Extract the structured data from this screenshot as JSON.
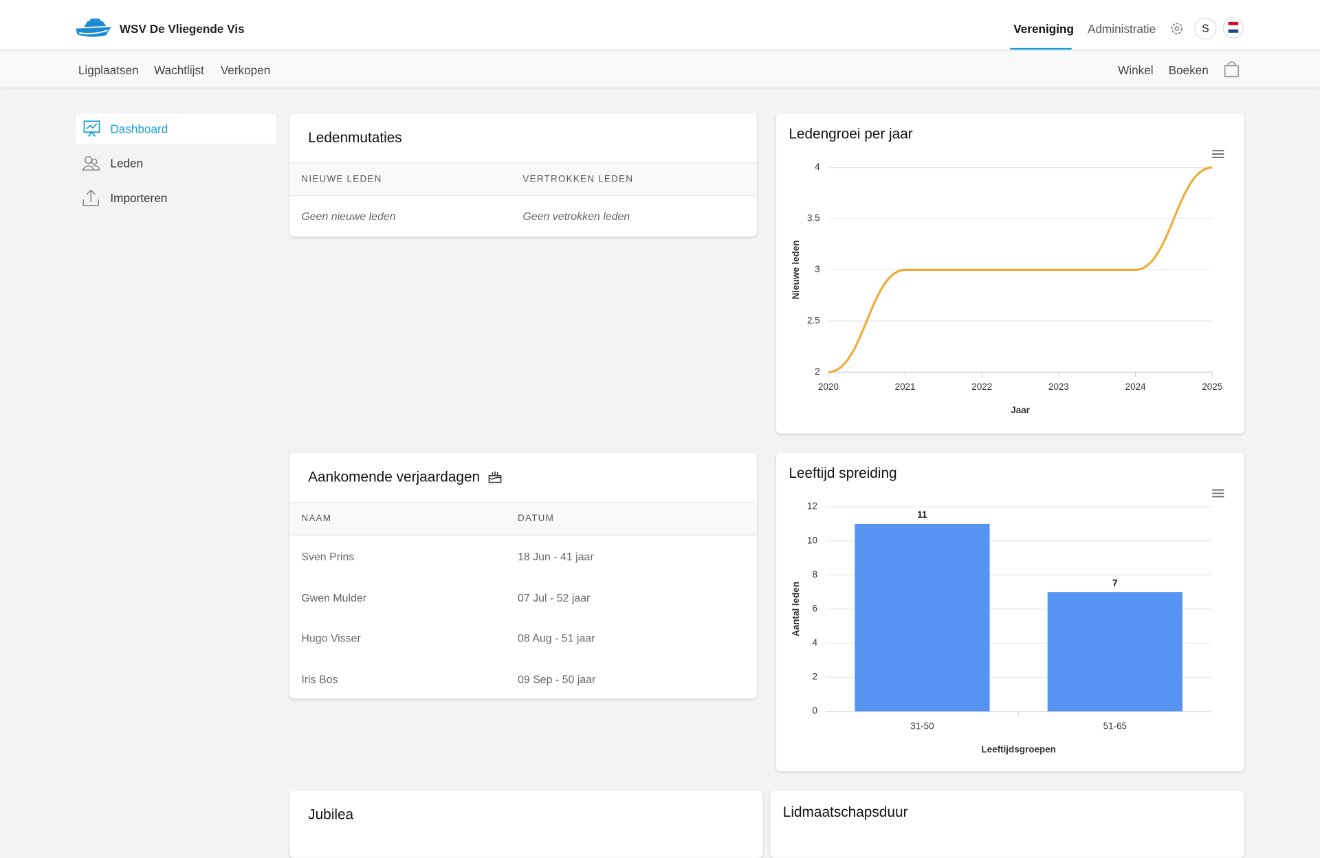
{
  "header": {
    "brand": "WSV De Vliegende Vis",
    "nav": [
      "Vereniging",
      "Administratie"
    ],
    "avatar": "S"
  },
  "subnav": {
    "left": [
      "Ligplaatsen",
      "Wachtlijst",
      "Verkopen"
    ],
    "right": [
      "Winkel",
      "Boeken"
    ]
  },
  "sidebar": [
    "Dashboard",
    "Leden",
    "Importeren"
  ],
  "ledenmutaties": {
    "title": "Ledenmutaties",
    "columns": [
      "NIEUWE LEDEN",
      "VERTROKKEN LEDEN"
    ],
    "empty": [
      "Geen nieuwe leden",
      "Geen vetrokken leden"
    ]
  },
  "verjaardagen": {
    "title": "Aankomende verjaardagen",
    "columns": [
      "NAAM",
      "DATUM"
    ],
    "rows": [
      [
        "Sven Prins",
        "18 Jun - 41 jaar"
      ],
      [
        "Gwen Mulder",
        "07 Jul - 52 jaar"
      ],
      [
        "Hugo Visser",
        "08 Aug - 51 jaar"
      ],
      [
        "Iris Bos",
        "09 Sep - 50 jaar"
      ]
    ]
  },
  "jubilea": {
    "title": "Jubilea"
  },
  "lidmaatschapsduur": {
    "title": "Lidmaatschapsduur"
  },
  "chart_data": [
    {
      "type": "line",
      "title": "Ledengroei per jaar",
      "x_label": "Jaar",
      "y_label": "Nieuwe leden",
      "x": [
        2020,
        2021,
        2022,
        2023,
        2024,
        2025
      ],
      "values": [
        2,
        3,
        3,
        3,
        3,
        4
      ],
      "color": "#f0a92e",
      "xlim": [
        2020,
        2025
      ],
      "xticks": [
        2020,
        2021,
        2022,
        2023,
        2024,
        2025
      ],
      "ylim": [
        2,
        4
      ],
      "yticks": [
        2,
        2.5,
        3,
        3.5,
        4
      ],
      "grid": true
    },
    {
      "type": "bar",
      "title": "Leeftijd spreiding",
      "x_label": "Leeftijdsgroepen",
      "y_label": "Aantal leden",
      "categories": [
        "31-50",
        "51-65"
      ],
      "values": [
        11,
        7
      ],
      "color": "#5794f2",
      "ylim": [
        0,
        12
      ],
      "yticks": [
        0,
        2,
        4,
        6,
        8,
        10,
        12
      ],
      "grid": true
    }
  ]
}
